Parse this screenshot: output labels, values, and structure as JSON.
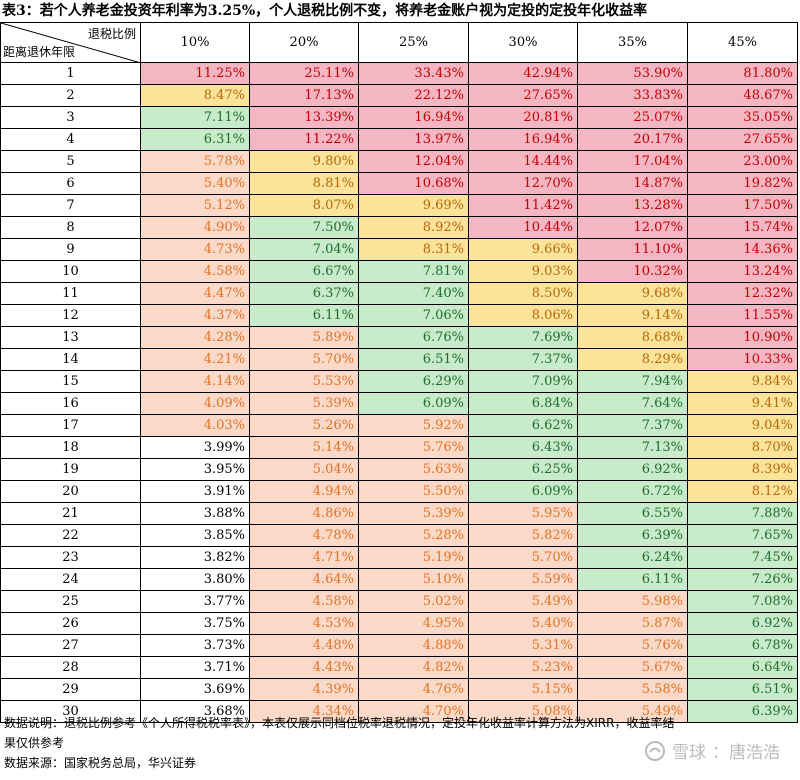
{
  "title": "表3：若个人养老金投资年利率为3.25%，个人退税比例不变，将养老金账户视为定投的定投年化收益率",
  "header": {
    "corner_top": "退税比例",
    "corner_bottom": "距离退休年限",
    "columns": [
      "10%",
      "20%",
      "25%",
      "30%",
      "35%",
      "45%"
    ]
  },
  "colors": {
    "red": "#f4b6c2",
    "yellow": "#fbe39a",
    "green": "#c8ecc9",
    "peach": "#fbd9c8",
    "white": "#ffffff"
  },
  "rows": [
    {
      "year": "1",
      "values": [
        "11.25%",
        "25.11%",
        "33.43%",
        "42.94%",
        "53.90%",
        "81.80%"
      ],
      "colors": [
        "red",
        "red",
        "red",
        "red",
        "red",
        "red"
      ]
    },
    {
      "year": "2",
      "values": [
        "8.47%",
        "17.13%",
        "22.12%",
        "27.65%",
        "33.83%",
        "48.67%"
      ],
      "colors": [
        "yel",
        "red",
        "red",
        "red",
        "red",
        "red"
      ]
    },
    {
      "year": "3",
      "values": [
        "7.11%",
        "13.39%",
        "16.94%",
        "20.81%",
        "25.07%",
        "35.05%"
      ],
      "colors": [
        "grn",
        "red",
        "red",
        "red",
        "red",
        "red"
      ]
    },
    {
      "year": "4",
      "values": [
        "6.31%",
        "11.22%",
        "13.97%",
        "16.94%",
        "20.17%",
        "27.65%"
      ],
      "colors": [
        "grn",
        "red",
        "red",
        "red",
        "red",
        "red"
      ]
    },
    {
      "year": "5",
      "values": [
        "5.78%",
        "9.80%",
        "12.04%",
        "14.44%",
        "17.04%",
        "23.00%"
      ],
      "colors": [
        "pch",
        "yel",
        "red",
        "red",
        "red",
        "red"
      ]
    },
    {
      "year": "6",
      "values": [
        "5.40%",
        "8.81%",
        "10.68%",
        "12.70%",
        "14.87%",
        "19.82%"
      ],
      "colors": [
        "pch",
        "yel",
        "red",
        "red",
        "red",
        "red"
      ]
    },
    {
      "year": "7",
      "values": [
        "5.12%",
        "8.07%",
        "9.69%",
        "11.42%",
        "13.28%",
        "17.50%"
      ],
      "colors": [
        "pch",
        "yel",
        "yel",
        "red",
        "red",
        "red"
      ]
    },
    {
      "year": "8",
      "values": [
        "4.90%",
        "7.50%",
        "8.92%",
        "10.44%",
        "12.07%",
        "15.74%"
      ],
      "colors": [
        "pch",
        "grn",
        "yel",
        "red",
        "red",
        "red"
      ]
    },
    {
      "year": "9",
      "values": [
        "4.73%",
        "7.04%",
        "8.31%",
        "9.66%",
        "11.10%",
        "14.36%"
      ],
      "colors": [
        "pch",
        "grn",
        "yel",
        "yel",
        "red",
        "red"
      ]
    },
    {
      "year": "10",
      "values": [
        "4.58%",
        "6.67%",
        "7.81%",
        "9.03%",
        "10.32%",
        "13.24%"
      ],
      "colors": [
        "pch",
        "grn",
        "grn",
        "yel",
        "red",
        "red"
      ]
    },
    {
      "year": "11",
      "values": [
        "4.47%",
        "6.37%",
        "7.40%",
        "8.50%",
        "9.68%",
        "12.32%"
      ],
      "colors": [
        "pch",
        "grn",
        "grn",
        "yel",
        "yel",
        "red"
      ]
    },
    {
      "year": "12",
      "values": [
        "4.37%",
        "6.11%",
        "7.06%",
        "8.06%",
        "9.14%",
        "11.55%"
      ],
      "colors": [
        "pch",
        "grn",
        "grn",
        "yel",
        "yel",
        "red"
      ]
    },
    {
      "year": "13",
      "values": [
        "4.28%",
        "5.89%",
        "6.76%",
        "7.69%",
        "8.68%",
        "10.90%"
      ],
      "colors": [
        "pch",
        "pch",
        "grn",
        "grn",
        "yel",
        "red"
      ]
    },
    {
      "year": "14",
      "values": [
        "4.21%",
        "5.70%",
        "6.51%",
        "7.37%",
        "8.29%",
        "10.33%"
      ],
      "colors": [
        "pch",
        "pch",
        "grn",
        "grn",
        "yel",
        "red"
      ]
    },
    {
      "year": "15",
      "values": [
        "4.14%",
        "5.53%",
        "6.29%",
        "7.09%",
        "7.94%",
        "9.84%"
      ],
      "colors": [
        "pch",
        "pch",
        "grn",
        "grn",
        "grn",
        "yel"
      ]
    },
    {
      "year": "16",
      "values": [
        "4.09%",
        "5.39%",
        "6.09%",
        "6.84%",
        "7.64%",
        "9.41%"
      ],
      "colors": [
        "pch",
        "pch",
        "grn",
        "grn",
        "grn",
        "yel"
      ]
    },
    {
      "year": "17",
      "values": [
        "4.03%",
        "5.26%",
        "5.92%",
        "6.62%",
        "7.37%",
        "9.04%"
      ],
      "colors": [
        "pch",
        "pch",
        "pch",
        "grn",
        "grn",
        "yel"
      ]
    },
    {
      "year": "18",
      "values": [
        "3.99%",
        "5.14%",
        "5.76%",
        "6.43%",
        "7.13%",
        "8.70%"
      ],
      "colors": [
        "wht",
        "pch",
        "pch",
        "grn",
        "grn",
        "yel"
      ]
    },
    {
      "year": "19",
      "values": [
        "3.95%",
        "5.04%",
        "5.63%",
        "6.25%",
        "6.92%",
        "8.39%"
      ],
      "colors": [
        "wht",
        "pch",
        "pch",
        "grn",
        "grn",
        "yel"
      ]
    },
    {
      "year": "20",
      "values": [
        "3.91%",
        "4.94%",
        "5.50%",
        "6.09%",
        "6.72%",
        "8.12%"
      ],
      "colors": [
        "wht",
        "pch",
        "pch",
        "grn",
        "grn",
        "yel"
      ]
    },
    {
      "year": "21",
      "values": [
        "3.88%",
        "4.86%",
        "5.39%",
        "5.95%",
        "6.55%",
        "7.88%"
      ],
      "colors": [
        "wht",
        "pch",
        "pch",
        "pch",
        "grn",
        "grn"
      ]
    },
    {
      "year": "22",
      "values": [
        "3.85%",
        "4.78%",
        "5.28%",
        "5.82%",
        "6.39%",
        "7.65%"
      ],
      "colors": [
        "wht",
        "pch",
        "pch",
        "pch",
        "grn",
        "grn"
      ]
    },
    {
      "year": "23",
      "values": [
        "3.82%",
        "4.71%",
        "5.19%",
        "5.70%",
        "6.24%",
        "7.45%"
      ],
      "colors": [
        "wht",
        "pch",
        "pch",
        "pch",
        "grn",
        "grn"
      ]
    },
    {
      "year": "24",
      "values": [
        "3.80%",
        "4.64%",
        "5.10%",
        "5.59%",
        "6.11%",
        "7.26%"
      ],
      "colors": [
        "wht",
        "pch",
        "pch",
        "pch",
        "grn",
        "grn"
      ]
    },
    {
      "year": "25",
      "values": [
        "3.77%",
        "4.58%",
        "5.02%",
        "5.49%",
        "5.98%",
        "7.08%"
      ],
      "colors": [
        "wht",
        "pch",
        "pch",
        "pch",
        "pch",
        "grn"
      ]
    },
    {
      "year": "26",
      "values": [
        "3.75%",
        "4.53%",
        "4.95%",
        "5.40%",
        "5.87%",
        "6.92%"
      ],
      "colors": [
        "wht",
        "pch",
        "pch",
        "pch",
        "pch",
        "grn"
      ]
    },
    {
      "year": "27",
      "values": [
        "3.73%",
        "4.48%",
        "4.88%",
        "5.31%",
        "5.76%",
        "6.78%"
      ],
      "colors": [
        "wht",
        "pch",
        "pch",
        "pch",
        "pch",
        "grn"
      ]
    },
    {
      "year": "28",
      "values": [
        "3.71%",
        "4.43%",
        "4.82%",
        "5.23%",
        "5.67%",
        "6.64%"
      ],
      "colors": [
        "wht",
        "pch",
        "pch",
        "pch",
        "pch",
        "grn"
      ]
    },
    {
      "year": "29",
      "values": [
        "3.69%",
        "4.39%",
        "4.76%",
        "5.15%",
        "5.58%",
        "6.51%"
      ],
      "colors": [
        "wht",
        "pch",
        "pch",
        "pch",
        "pch",
        "grn"
      ]
    },
    {
      "year": "30",
      "values": [
        "3.68%",
        "4.34%",
        "4.70%",
        "5.08%",
        "5.49%",
        "6.39%"
      ],
      "colors": [
        "wht",
        "pch",
        "pch",
        "pch",
        "pch",
        "grn"
      ]
    }
  ],
  "notes": {
    "line1": "数据说明：退税比例参考《个人所得税税率表》，本表仅展示同档位税率退税情况，定投年化收益率计算方法为XIRR，收益率结",
    "line2": "果仅供参考",
    "line3": "数据来源：国家税务总局，华兴证券"
  },
  "watermark": {
    "brand": "雪球",
    "author": "：唐浩浩"
  }
}
